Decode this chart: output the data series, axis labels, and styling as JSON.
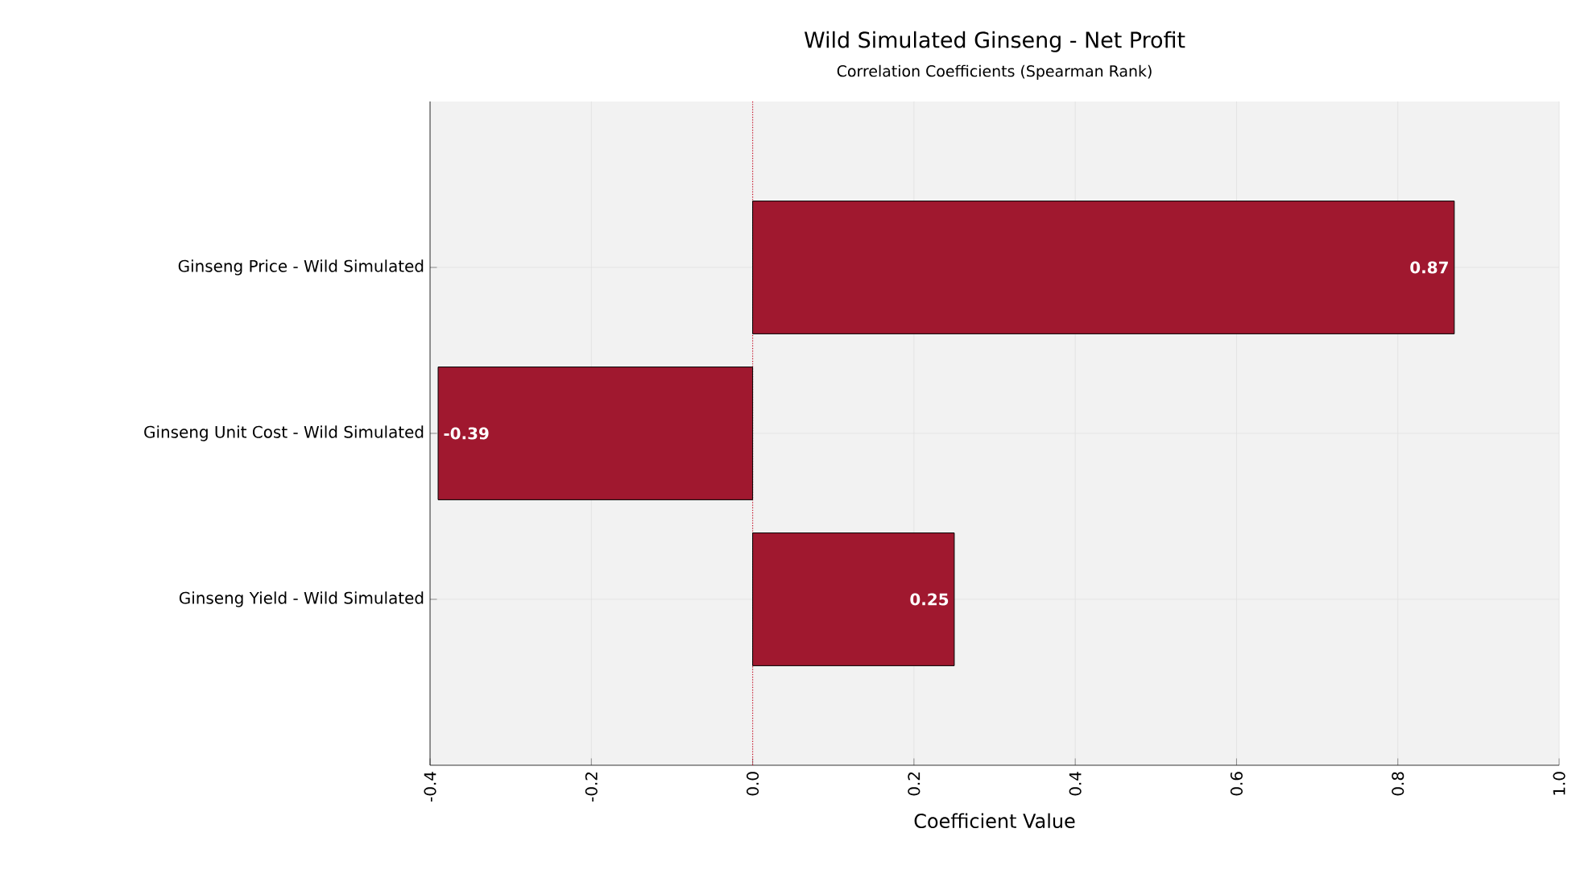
{
  "chart_data": {
    "type": "bar",
    "orientation": "horizontal",
    "title": "Wild Simulated Ginseng - Net Profit",
    "subtitle": "Correlation Coefficients (Spearman Rank)",
    "xlabel": "Coefficient Value",
    "categories": [
      "Ginseng Price - Wild Simulated",
      "Ginseng Unit Cost - Wild Simulated",
      "Ginseng Yield - Wild Simulated"
    ],
    "values": [
      0.87,
      -0.39,
      0.25
    ],
    "value_labels": [
      "0.87",
      "-0.39",
      "0.25"
    ],
    "color": "#a0182f",
    "xlim": [
      -0.4,
      1.0
    ],
    "xticks": [
      -0.4,
      -0.2,
      {
        "value": 0,
        "label": "0.0"
      },
      0.2,
      0.4,
      0.6,
      0.8,
      {
        "value": 1,
        "label": "1.0"
      }
    ],
    "grid": true,
    "ref_lines": [
      {
        "axis": "x",
        "value": 0,
        "color": "#d0102a",
        "line_style": "dotted"
      }
    ]
  }
}
